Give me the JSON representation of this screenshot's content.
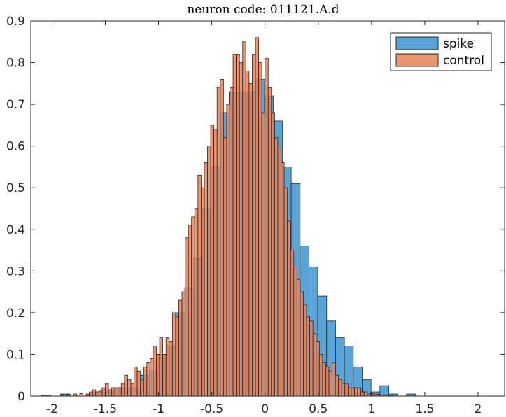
{
  "chart_data": {
    "type": "bar",
    "subtype": "histogram-overlay",
    "title": "neuron code: 011121.A.d",
    "xlabel": "",
    "ylabel": "",
    "xlim": [
      -2.2,
      2.25
    ],
    "ylim": [
      0,
      0.9
    ],
    "xticks": [
      -2,
      -1.5,
      -1,
      -0.5,
      0,
      0.5,
      1,
      1.5,
      2
    ],
    "xtick_labels": [
      "-2",
      "-1.5",
      "-1",
      "-0.5",
      "0",
      "0.5",
      "1",
      "1.5",
      "2"
    ],
    "yticks": [
      0,
      0.1,
      0.2,
      0.3,
      0.4,
      0.5,
      0.6,
      0.7,
      0.8,
      0.9
    ],
    "ytick_labels": [
      "0",
      "0.1",
      "0.2",
      "0.3",
      "0.4",
      "0.5",
      "0.6",
      "0.7",
      "0.8",
      "0.9"
    ],
    "grid": false,
    "legend_position": "top-right",
    "series": [
      {
        "name": "spike",
        "color": "#5aa5d8",
        "opacity": 1.0,
        "bin_width": 0.0833,
        "bin_start": -1.92,
        "values": [
          0.005,
          0.0,
          0.0,
          0.005,
          0.01,
          0.01,
          0.02,
          0.02,
          0.02,
          0.05,
          0.06,
          0.1,
          0.12,
          0.2,
          0.26,
          0.33,
          0.45,
          0.55,
          0.68,
          0.73,
          0.73,
          0.73,
          0.76,
          0.72,
          0.66,
          0.55,
          0.51,
          0.36,
          0.31,
          0.24,
          0.18,
          0.14,
          0.12,
          0.07,
          0.04,
          0.01,
          0.025,
          0.005,
          0.0,
          0.005
        ]
      },
      {
        "name": "control",
        "color": "#e8825a",
        "opacity": 0.85,
        "bin_width": 0.03,
        "bin_start": -2.1,
        "values": [
          0.002,
          0.002,
          0.002,
          0.0,
          0.0,
          0.0,
          0.003,
          0.0,
          0.004,
          0.0,
          0.005,
          0.0,
          0.006,
          0.0,
          0.005,
          0.01,
          0.015,
          0.01,
          0.012,
          0.02,
          0.03,
          0.015,
          0.02,
          0.02,
          0.02,
          0.03,
          0.05,
          0.04,
          0.03,
          0.07,
          0.06,
          0.04,
          0.07,
          0.08,
          0.09,
          0.12,
          0.1,
          0.14,
          0.1,
          0.14,
          0.13,
          0.2,
          0.19,
          0.23,
          0.25,
          0.38,
          0.41,
          0.43,
          0.45,
          0.53,
          0.5,
          0.56,
          0.6,
          0.65,
          0.64,
          0.74,
          0.76,
          0.62,
          0.7,
          0.74,
          0.82,
          0.82,
          0.8,
          0.85,
          0.78,
          0.75,
          0.82,
          0.86,
          0.8,
          0.68,
          0.81,
          0.74,
          0.68,
          0.62,
          0.6,
          0.56,
          0.5,
          0.42,
          0.35,
          0.31,
          0.28,
          0.25,
          0.22,
          0.19,
          0.18,
          0.15,
          0.13,
          0.1,
          0.08,
          0.07,
          0.06,
          0.08,
          0.05,
          0.04,
          0.03,
          0.03,
          0.02,
          0.02,
          0.02,
          0.02,
          0.01,
          0.01,
          0.005,
          0.005,
          0.005,
          0.004,
          0.0,
          0.003,
          0.0,
          0.002
        ]
      }
    ]
  }
}
